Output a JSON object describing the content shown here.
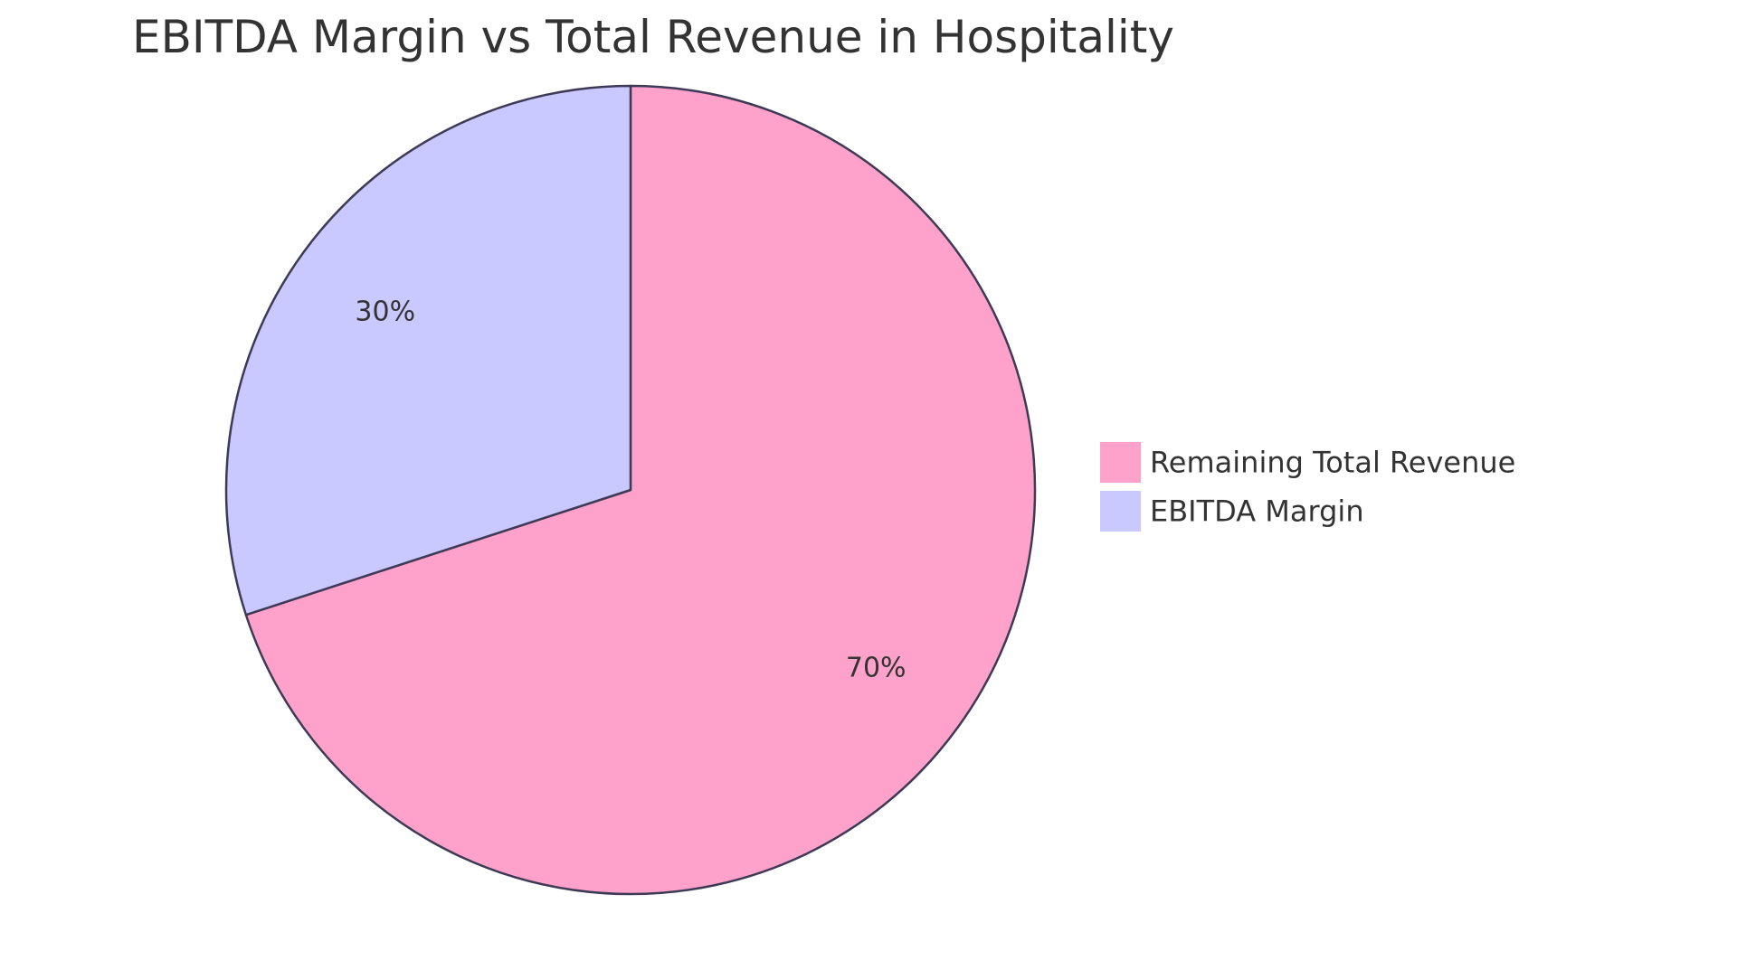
{
  "chart_data": {
    "type": "pie",
    "title": "EBITDA Margin vs Total Revenue in Hospitality",
    "slices": [
      {
        "label": "Remaining Total Revenue",
        "value": 70,
        "display": "70%",
        "color": "#FFA2CB"
      },
      {
        "label": "EBITDA Margin",
        "value": 30,
        "display": "30%",
        "color": "#C9C9FF"
      }
    ],
    "legend_position": "right",
    "start_angle": "top",
    "direction": "clockwise",
    "stroke_color": "#3E3A56"
  }
}
